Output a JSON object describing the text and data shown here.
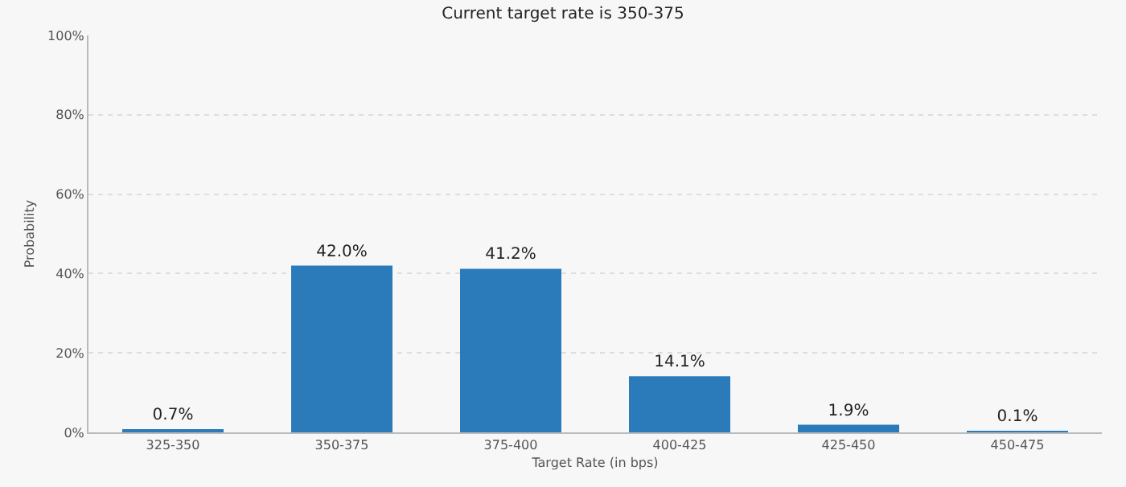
{
  "chart_data": {
    "type": "bar",
    "title": "Current target rate is 350-375",
    "xlabel": "Target Rate (in bps)",
    "ylabel": "Probability",
    "categories": [
      "325-350",
      "350-375",
      "375-400",
      "400-425",
      "425-450",
      "450-475"
    ],
    "values": [
      0.7,
      42.0,
      41.2,
      14.1,
      1.9,
      0.1
    ],
    "value_labels": [
      "0.7%",
      "42.0%",
      "41.2%",
      "14.1%",
      "1.9%",
      "0.1%"
    ],
    "color": "#2b7bba",
    "ylim": [
      0,
      100
    ],
    "yticks": [
      {
        "value": 0,
        "label": "0%"
      },
      {
        "value": 20,
        "label": "20%"
      },
      {
        "value": 40,
        "label": "40%"
      },
      {
        "value": 60,
        "label": "60%"
      },
      {
        "value": 80,
        "label": "80%"
      },
      {
        "value": 100,
        "label": "100%"
      }
    ],
    "grid": "y"
  }
}
